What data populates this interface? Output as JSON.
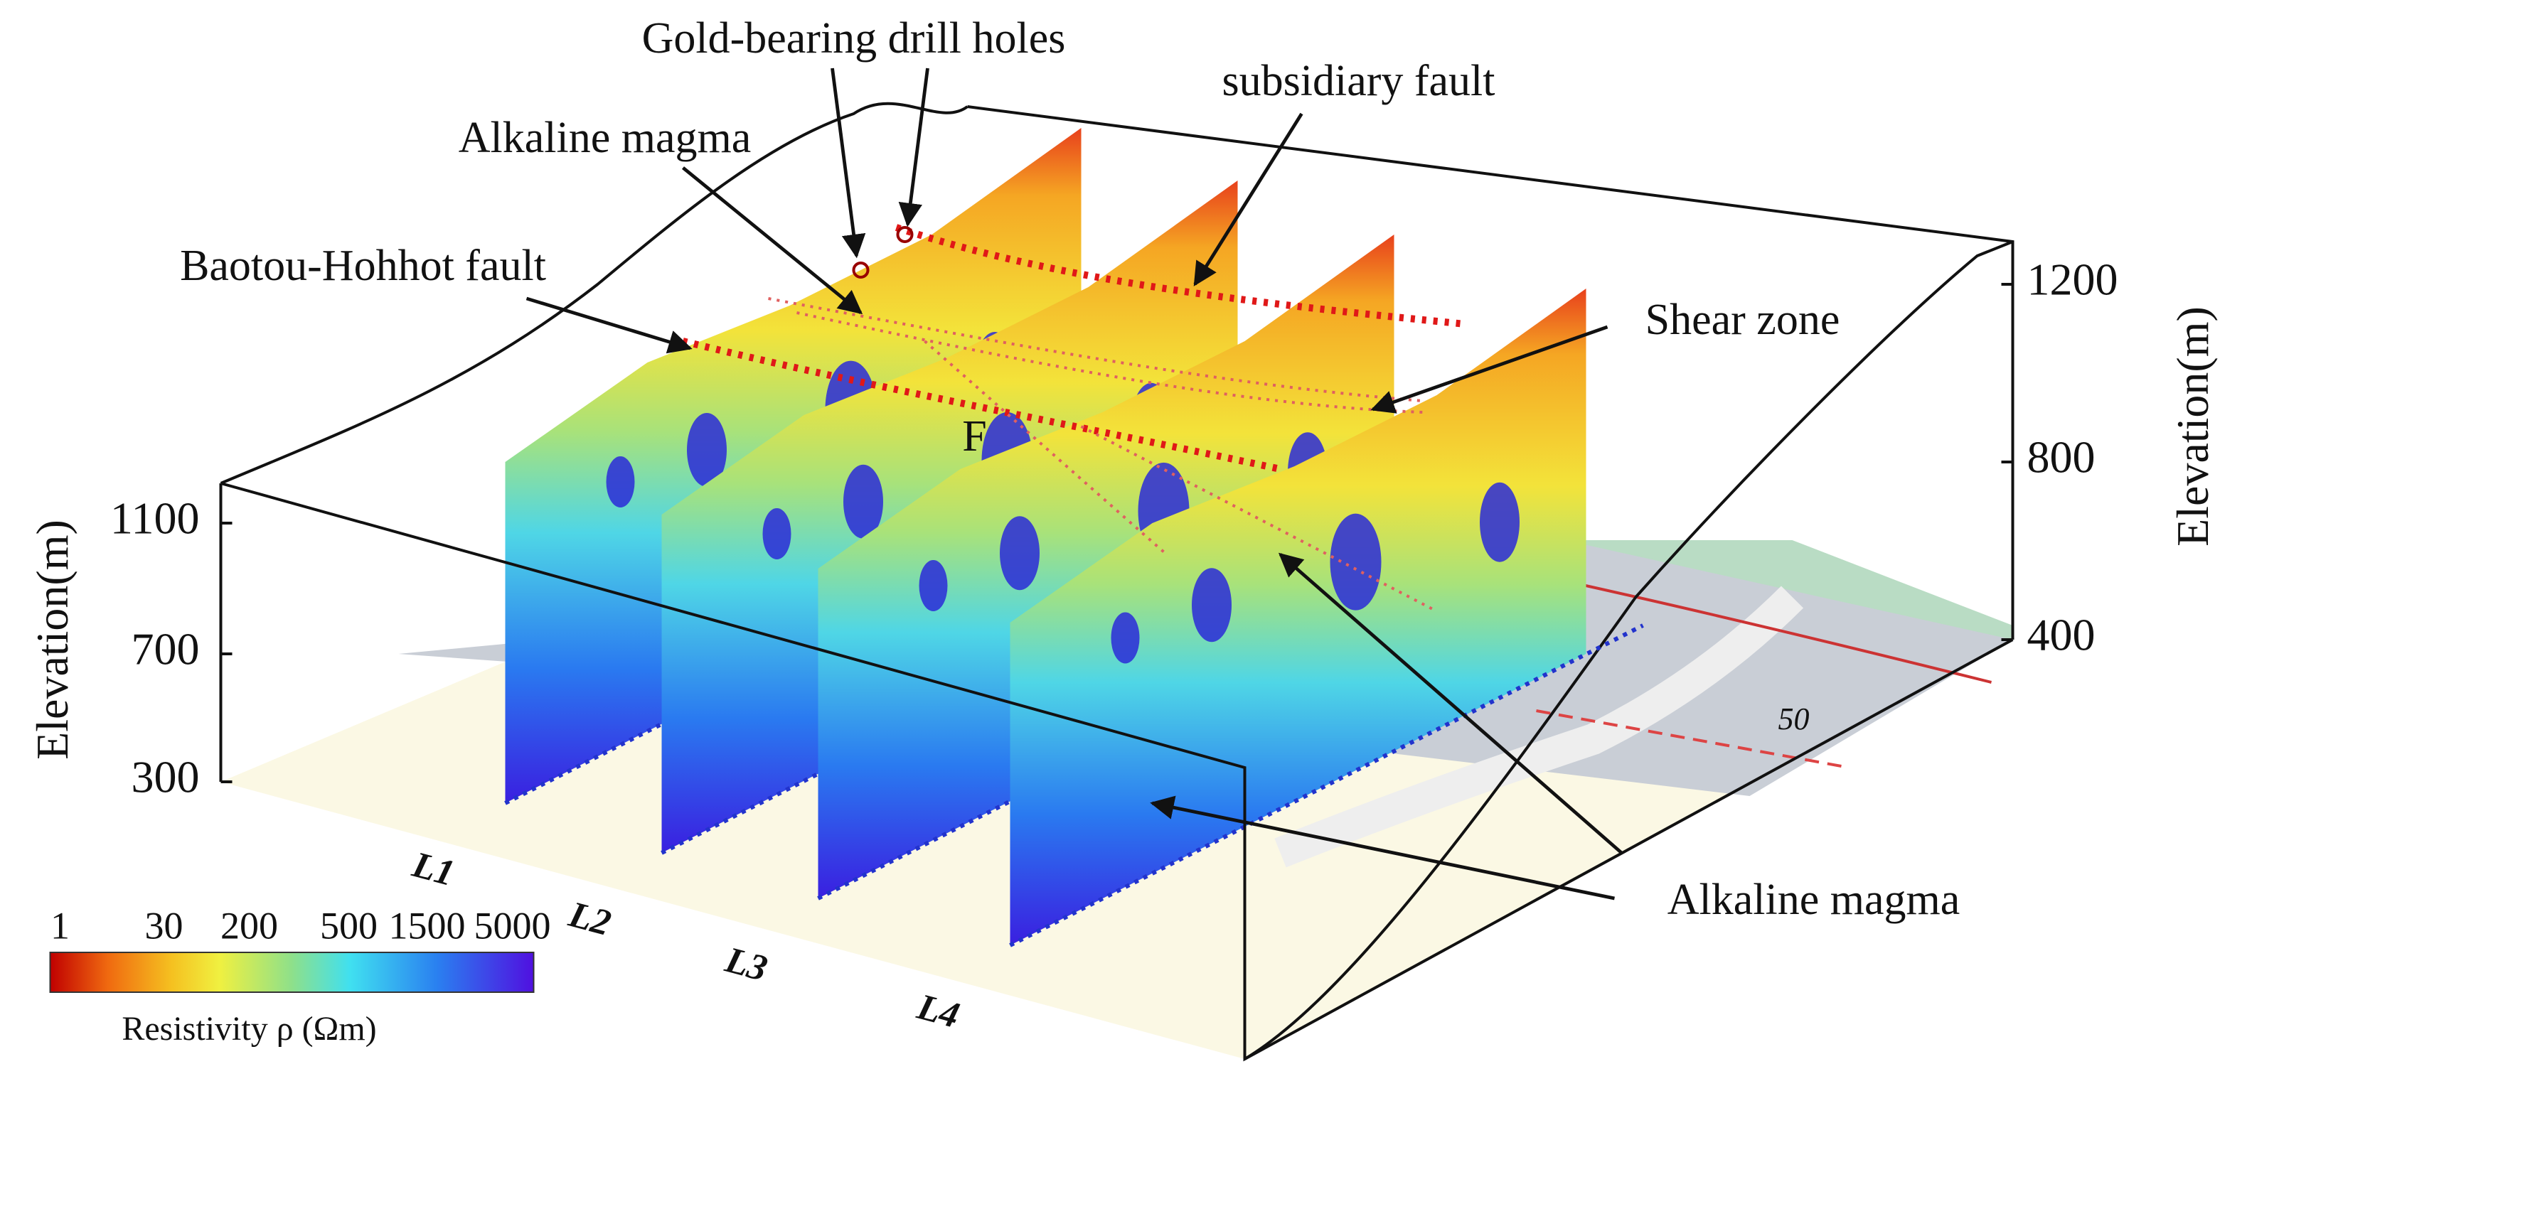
{
  "annotations": [
    "Gold-bearing drill holes",
    "subsidiary fault",
    "Alkaline magma",
    "Baotou-Hohhot fault",
    "Shear zone",
    "F",
    "Alkaline magma"
  ],
  "left_axis": {
    "label": "Elevation(m)",
    "ticks": [
      1100,
      700,
      300
    ]
  },
  "right_axis": {
    "label": "Elevation(m)",
    "ticks": [
      1200,
      800,
      400
    ]
  },
  "colorbar": {
    "title": "Resistivity ρ (Ωm)",
    "ticks": [
      1,
      30,
      200,
      500,
      1500,
      5000
    ]
  },
  "profiles": [
    "L1",
    "L2",
    "L3",
    "L4"
  ],
  "map_label": "50"
}
